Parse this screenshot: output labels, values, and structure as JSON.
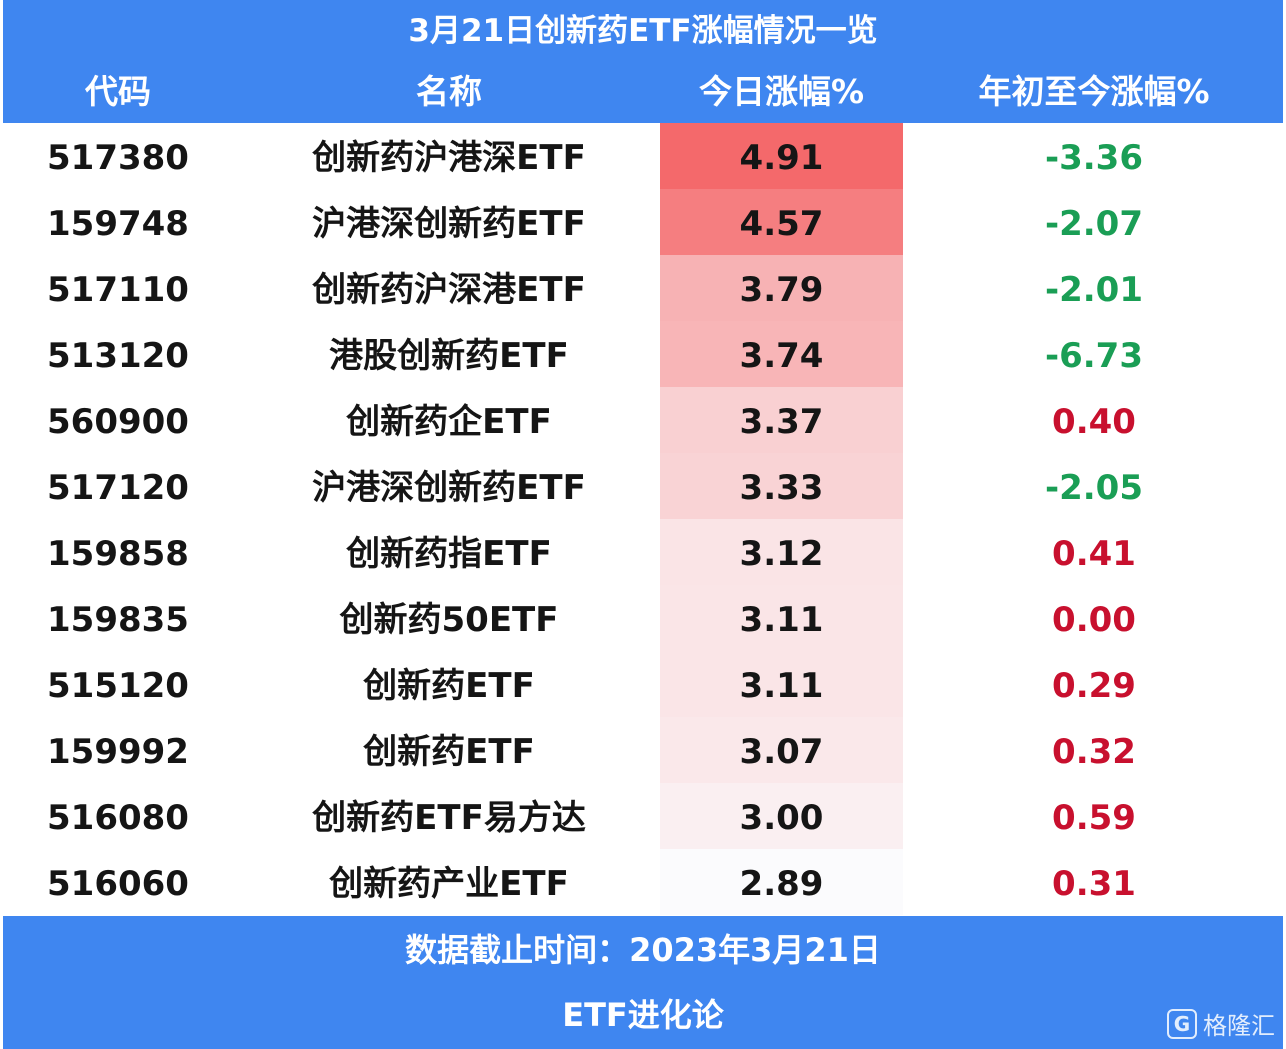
{
  "title": "3月21日创新药ETF涨幅情况一览",
  "columns": {
    "code": "代码",
    "name": "名称",
    "today": "今日涨幅%",
    "ytd": "年初至今涨幅%"
  },
  "rows": [
    {
      "code": "517380",
      "name": "创新药沪港深ETF",
      "today": "4.91",
      "ytd": "-3.36"
    },
    {
      "code": "159748",
      "name": "沪港深创新药ETF",
      "today": "4.57",
      "ytd": "-2.07"
    },
    {
      "code": "517110",
      "name": "创新药沪深港ETF",
      "today": "3.79",
      "ytd": "-2.01"
    },
    {
      "code": "513120",
      "name": "港股创新药ETF",
      "today": "3.74",
      "ytd": "-6.73"
    },
    {
      "code": "560900",
      "name": "创新药企ETF",
      "today": "3.37",
      "ytd": "0.40"
    },
    {
      "code": "517120",
      "name": "沪港深创新药ETF",
      "today": "3.33",
      "ytd": "-2.05"
    },
    {
      "code": "159858",
      "name": "创新药指ETF",
      "today": "3.12",
      "ytd": "0.41"
    },
    {
      "code": "159835",
      "name": "创新药50ETF",
      "today": "3.11",
      "ytd": "0.00"
    },
    {
      "code": "515120",
      "name": "创新药ETF",
      "today": "3.11",
      "ytd": "0.29"
    },
    {
      "code": "159992",
      "name": "创新药ETF",
      "today": "3.07",
      "ytd": "0.32"
    },
    {
      "code": "516080",
      "name": "创新药ETF易方达",
      "today": "3.00",
      "ytd": "0.59"
    },
    {
      "code": "516060",
      "name": "创新药产业ETF",
      "today": "2.89",
      "ytd": "0.31"
    }
  ],
  "footer": {
    "date_line": "数据截止时间：2023年3月21日",
    "source": "ETF进化论"
  },
  "watermark": {
    "logo_glyph": "G",
    "text": "格隆汇"
  },
  "colors": {
    "header_bg": "#3f86f0",
    "positive": "#c8102e",
    "negative": "#1a9e55",
    "heat_high": "#f4696b",
    "heat_low": "#fbfbfd"
  }
}
